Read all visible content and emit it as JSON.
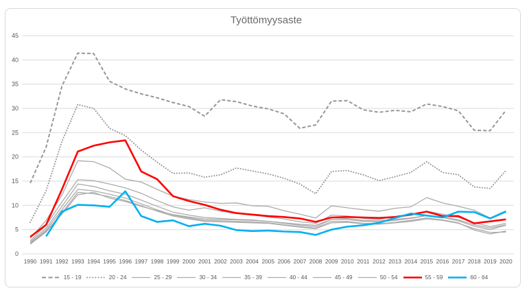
{
  "chart_data": {
    "type": "line",
    "title": "Työttömyysaste",
    "x": [
      1990,
      1991,
      1992,
      1993,
      1994,
      1995,
      1996,
      1997,
      1998,
      1999,
      2000,
      2001,
      2002,
      2003,
      2004,
      2005,
      2006,
      2007,
      2008,
      2009,
      2010,
      2011,
      2012,
      2013,
      2014,
      2015,
      2016,
      2017,
      2018,
      2019,
      2020
    ],
    "ylim": [
      0,
      45
    ],
    "ytick_step": 5,
    "yticks": [
      0,
      5,
      10,
      15,
      20,
      25,
      30,
      35,
      40,
      45
    ],
    "grid": "horizontal",
    "gridline_color": "#d9d9d9",
    "axis_text_color": "#595959",
    "legend_position": "bottom",
    "series": [
      {
        "name": "15 - 19",
        "style": "dashed",
        "color": "#969696",
        "width": 2,
        "values": [
          14.6,
          22.0,
          34.6,
          41.4,
          41.3,
          35.6,
          34.0,
          33.0,
          32.2,
          31.2,
          30.4,
          28.4,
          31.8,
          31.4,
          30.5,
          29.9,
          28.9,
          25.9,
          26.6,
          31.5,
          31.6,
          29.7,
          29.2,
          29.6,
          29.3,
          30.9,
          30.4,
          29.5,
          25.5,
          25.4,
          29.6
        ]
      },
      {
        "name": "20 - 24",
        "style": "dotted",
        "color": "#969696",
        "width": 2,
        "values": [
          6.5,
          13.0,
          23.2,
          30.8,
          30.0,
          25.9,
          24.4,
          21.4,
          18.9,
          16.6,
          16.7,
          15.8,
          16.3,
          17.7,
          17.1,
          16.5,
          15.6,
          14.4,
          12.4,
          17.0,
          17.2,
          16.3,
          15.1,
          15.9,
          16.8,
          19.0,
          16.8,
          16.3,
          13.8,
          13.5,
          17.2
        ]
      },
      {
        "name": "25 - 29",
        "style": "solid",
        "color": "#ababab",
        "width": 1.3,
        "values": [
          3.2,
          6.9,
          12.1,
          19.2,
          19.0,
          17.7,
          15.4,
          14.8,
          13.3,
          11.9,
          11.2,
          10.7,
          10.4,
          10.5,
          9.9,
          9.8,
          8.9,
          8.2,
          7.4,
          9.9,
          9.5,
          9.1,
          8.8,
          9.4,
          9.7,
          11.6,
          10.5,
          9.8,
          9.0,
          7.4,
          8.9
        ]
      },
      {
        "name": "30 - 34",
        "style": "solid",
        "color": "#ababab",
        "width": 1.3,
        "values": [
          2.7,
          5.9,
          10.7,
          15.3,
          15.1,
          14.4,
          13.6,
          12.5,
          11.0,
          9.7,
          9.0,
          9.5,
          8.8,
          8.3,
          8.0,
          7.6,
          7.2,
          6.6,
          6.3,
          8.0,
          7.8,
          7.3,
          7.1,
          7.7,
          8.1,
          8.8,
          8.2,
          7.5,
          6.4,
          5.6,
          6.3
        ]
      },
      {
        "name": "35 - 39",
        "style": "solid",
        "color": "#ababab",
        "width": 1.3,
        "values": [
          2.4,
          5.3,
          9.8,
          14.4,
          13.9,
          13.0,
          12.3,
          11.1,
          9.8,
          8.6,
          8.0,
          7.5,
          7.3,
          7.1,
          7.0,
          6.7,
          6.3,
          5.9,
          5.6,
          7.1,
          7.1,
          6.7,
          6.6,
          6.9,
          7.3,
          7.9,
          7.5,
          6.8,
          5.7,
          5.0,
          5.9
        ]
      },
      {
        "name": "40 - 44",
        "style": "solid",
        "color": "#ababab",
        "width": 1.3,
        "values": [
          2.2,
          4.9,
          9.1,
          13.3,
          13.0,
          12.3,
          11.5,
          10.3,
          9.1,
          8.0,
          7.4,
          6.9,
          6.8,
          6.7,
          6.6,
          6.4,
          6.0,
          5.6,
          5.3,
          6.7,
          6.7,
          6.3,
          6.2,
          6.5,
          6.9,
          7.4,
          7.0,
          6.4,
          4.9,
          4.1,
          4.7
        ]
      },
      {
        "name": "45 - 49",
        "style": "solid",
        "color": "#ababab",
        "width": 1.3,
        "values": [
          2.0,
          4.5,
          8.4,
          12.7,
          12.4,
          11.8,
          11.0,
          9.9,
          8.8,
          7.8,
          7.2,
          6.7,
          6.6,
          6.5,
          6.4,
          6.3,
          5.9,
          5.5,
          5.2,
          6.4,
          6.5,
          6.2,
          6.1,
          6.4,
          6.7,
          7.2,
          6.9,
          6.3,
          5.2,
          4.4,
          4.5
        ]
      },
      {
        "name": "50 - 54",
        "style": "solid",
        "color": "#ababab",
        "width": 1.3,
        "values": [
          2.2,
          4.7,
          8.2,
          12.2,
          12.7,
          11.5,
          10.8,
          9.8,
          8.9,
          8.1,
          7.6,
          7.2,
          7.1,
          7.0,
          6.9,
          6.7,
          6.4,
          6.1,
          5.9,
          7.1,
          7.3,
          6.9,
          6.8,
          7.1,
          7.4,
          7.9,
          7.6,
          7.0,
          6.0,
          5.3,
          6.0
        ]
      },
      {
        "name": "55 - 59",
        "style": "solid",
        "color": "#ff0000",
        "width": 2.6,
        "values": [
          3.5,
          6.0,
          13.3,
          21.1,
          22.3,
          23.0,
          23.4,
          17.0,
          15.4,
          11.9,
          10.9,
          10.1,
          9.1,
          8.4,
          8.1,
          7.8,
          7.6,
          7.3,
          6.6,
          7.5,
          7.6,
          7.5,
          7.4,
          7.6,
          8.1,
          8.7,
          7.8,
          7.8,
          6.3,
          6.7,
          7.1
        ]
      },
      {
        "name": "60 - 64",
        "style": "solid",
        "color": "#00b0f0",
        "width": 2.6,
        "values": [
          null,
          3.6,
          8.7,
          10.1,
          10.0,
          9.7,
          12.9,
          7.8,
          6.6,
          6.9,
          5.7,
          6.2,
          5.8,
          4.9,
          4.7,
          4.8,
          4.6,
          4.5,
          3.9,
          5.0,
          5.6,
          5.9,
          6.4,
          7.4,
          8.3,
          7.9,
          7.5,
          8.7,
          8.6,
          7.3,
          8.7
        ]
      }
    ]
  }
}
